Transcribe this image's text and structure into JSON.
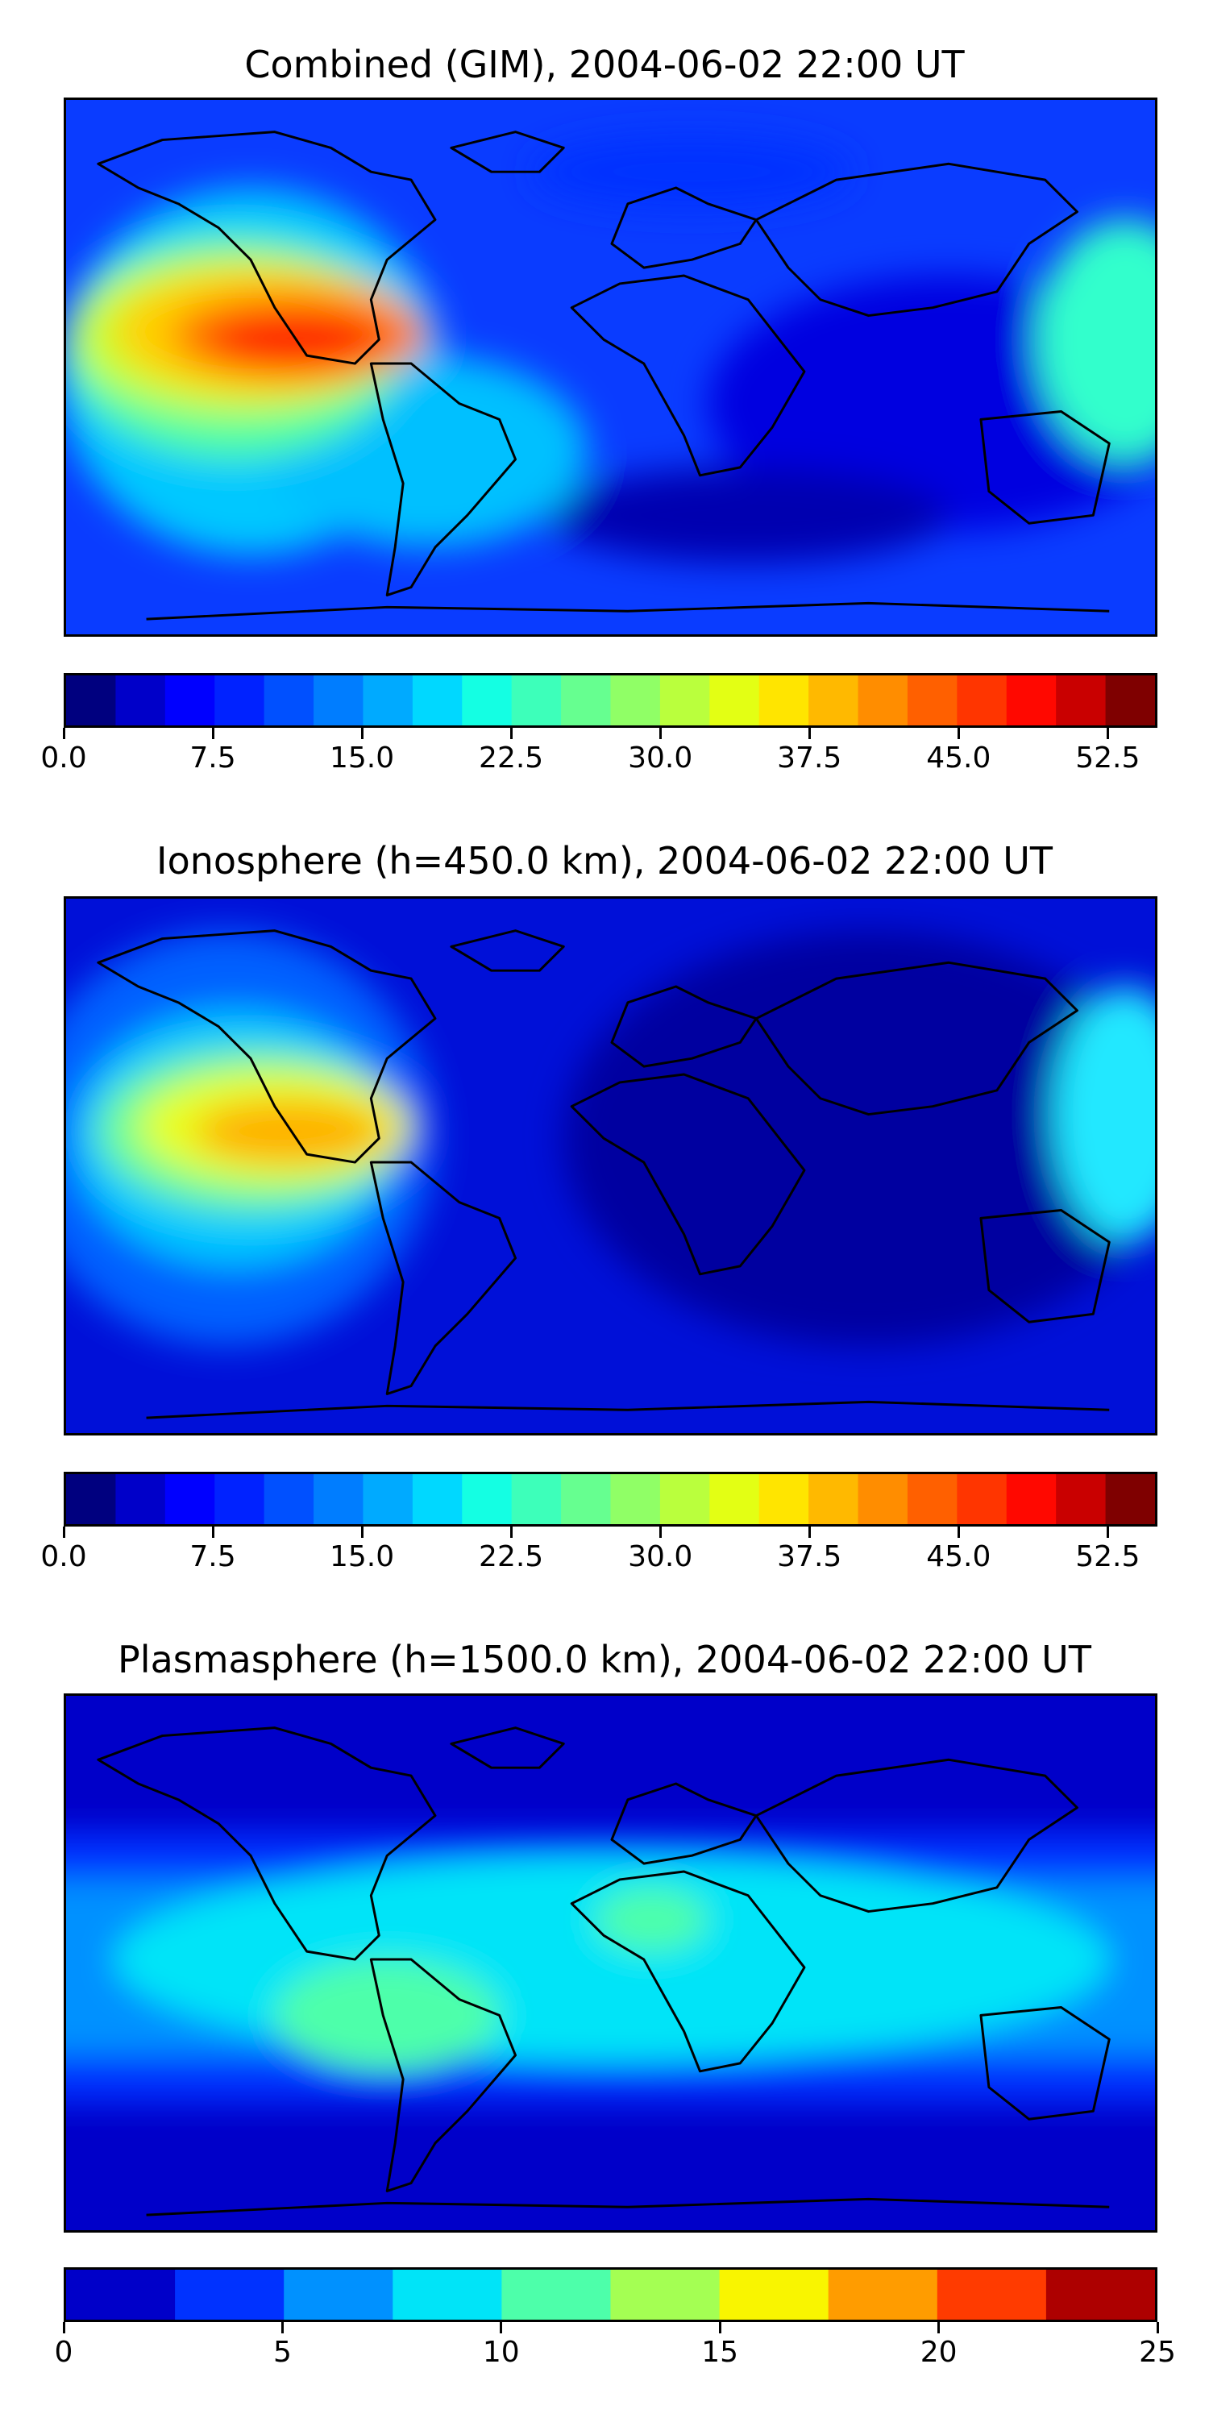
{
  "panels": [
    {
      "title": "Combined (GIM), 2004-06-02 22:00 UT",
      "colorbar": {
        "min": 0,
        "max": 55,
        "step": 2.5,
        "tick_labels": [
          "0.0",
          "7.5",
          "15.0",
          "22.5",
          "30.0",
          "37.5",
          "45.0",
          "52.5"
        ]
      }
    },
    {
      "title": "Ionosphere  (h=450.0 km), 2004-06-02 22:00 UT",
      "colorbar": {
        "min": 0,
        "max": 55,
        "step": 2.5,
        "tick_labels": [
          "0.0",
          "7.5",
          "15.0",
          "22.5",
          "30.0",
          "37.5",
          "45.0",
          "52.5"
        ]
      }
    },
    {
      "title": "Plasmasphere (h=1500.0 km), 2004-06-02 22:00 UT",
      "colorbar": {
        "min": 0,
        "max": 25,
        "step": 2.5,
        "tick_labels": [
          "0",
          "5",
          "10",
          "15",
          "20",
          "25"
        ]
      }
    }
  ],
  "chart_data": [
    {
      "type": "heatmap",
      "title": "Combined (GIM), 2004-06-02 22:00 UT",
      "colormap": "jet",
      "levels": [
        0,
        2.5,
        5,
        7.5,
        10,
        12.5,
        15,
        17.5,
        20,
        22.5,
        25,
        27.5,
        30,
        32.5,
        35,
        37.5,
        40,
        42.5,
        45,
        47.5,
        50,
        52.5,
        55
      ],
      "colorbar_ticks": [
        0,
        7.5,
        15,
        22.5,
        30,
        37.5,
        45,
        52.5
      ],
      "features": [
        {
          "region": "eastern Pacific near Central America",
          "value": 50
        },
        {
          "region": "central/eastern Pacific band",
          "value": 35
        },
        {
          "region": "South America / South Atlantic",
          "value": 22
        },
        {
          "region": "Africa and Indian Ocean",
          "value": 12
        },
        {
          "region": "high latitudes",
          "value": 8
        },
        {
          "region": "southern Indian Ocean minimum",
          "value": 3
        }
      ]
    },
    {
      "type": "heatmap",
      "title": "Ionosphere  (h=450.0 km), 2004-06-02 22:00 UT",
      "colormap": "jet",
      "levels": [
        0,
        2.5,
        5,
        7.5,
        10,
        12.5,
        15,
        17.5,
        20,
        22.5,
        25,
        27.5,
        30,
        32.5,
        35,
        37.5,
        40,
        42.5,
        45,
        47.5,
        50,
        52.5,
        55
      ],
      "colorbar_ticks": [
        0,
        7.5,
        15,
        22.5,
        30,
        37.5,
        45,
        52.5
      ],
      "features": [
        {
          "region": "eastern Pacific near Central America",
          "value": 40
        },
        {
          "region": "central/eastern Pacific band",
          "value": 30
        },
        {
          "region": "South Pacific / South America",
          "value": 18
        },
        {
          "region": "Africa and Indian Ocean",
          "value": 6
        },
        {
          "region": "South Atlantic / Indian Ocean minimum",
          "value": 2
        }
      ]
    },
    {
      "type": "heatmap",
      "title": "Plasmasphere (h=1500.0 km), 2004-06-02 22:00 UT",
      "colormap": "jet",
      "levels": [
        0,
        2.5,
        5,
        7.5,
        10,
        12.5,
        15,
        17.5,
        20,
        22.5,
        25
      ],
      "colorbar_ticks": [
        0,
        5,
        10,
        15,
        20,
        25
      ],
      "features": [
        {
          "region": "South America / South Atlantic",
          "value": 11
        },
        {
          "region": "North Africa",
          "value": 11
        },
        {
          "region": "equatorial band",
          "value": 8
        },
        {
          "region": "mid latitudes",
          "value": 4
        },
        {
          "region": "high latitudes",
          "value": 1
        }
      ]
    }
  ],
  "colors": {
    "jet_22": [
      "#00007f",
      "#0000c9",
      "#0000ff",
      "#0022ff",
      "#0050ff",
      "#007dff",
      "#00aaff",
      "#00d8ff",
      "#14ffe3",
      "#3dffba",
      "#66ff90",
      "#90ff66",
      "#baff3d",
      "#e3ff14",
      "#ffe500",
      "#ffb900",
      "#ff8d00",
      "#ff6000",
      "#ff3500",
      "#ff0800",
      "#c90000",
      "#7f0000"
    ],
    "jet_10": [
      "#0000c9",
      "#0032ff",
      "#0091ff",
      "#00e4f8",
      "#4dffaa",
      "#a4ff53",
      "#f9f500",
      "#ff9c00",
      "#ff3b00",
      "#ad0000"
    ],
    "land_outline": "#000000"
  }
}
